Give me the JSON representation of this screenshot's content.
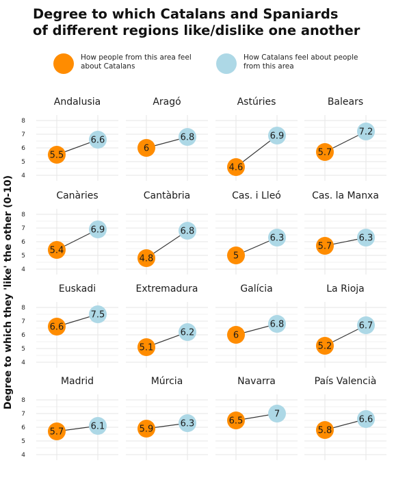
{
  "title": "Degree to which Catalans and Spaniards\nof different regions like/dislike one another",
  "legend": {
    "item1": "How people from this area feel\nabout Catalans",
    "item2": "How Catalans feel about people\nfrom this area"
  },
  "colors": {
    "orange": "#ff8c00",
    "blue": "#add8e6",
    "line": "#333333",
    "grid": "#e6e6e6"
  },
  "chart_data": {
    "type": "scatter",
    "title": "Degree to which Catalans and Spaniards of different regions like/dislike one another",
    "ylabel": "Degree to which they 'like' the other (0-10)",
    "ylim": [
      3.6,
      8.4
    ],
    "yticks": [
      4,
      5,
      6,
      7,
      8
    ],
    "series": [
      {
        "name": "How people from this area feel about Catalans",
        "color": "#ff8c00"
      },
      {
        "name": "How Catalans feel about people from this area",
        "color": "#add8e6"
      }
    ],
    "panels": [
      {
        "region": "Andalusia",
        "values": [
          5.5,
          6.6
        ],
        "labels": [
          "5.5",
          "6.6"
        ]
      },
      {
        "region": "Aragó",
        "values": [
          6,
          6.8
        ],
        "labels": [
          "6",
          "6.8"
        ]
      },
      {
        "region": "Astúries",
        "values": [
          4.6,
          6.9
        ],
        "labels": [
          "4.6",
          "6.9"
        ]
      },
      {
        "region": "Balears",
        "values": [
          5.7,
          7.2
        ],
        "labels": [
          "5.7",
          "7.2"
        ]
      },
      {
        "region": "Canàries",
        "values": [
          5.4,
          6.9
        ],
        "labels": [
          "5.4",
          "6.9"
        ]
      },
      {
        "region": "Cantàbria",
        "values": [
          4.8,
          6.8
        ],
        "labels": [
          "4.8",
          "6.8"
        ]
      },
      {
        "region": "Cas. i Lleó",
        "values": [
          5,
          6.3
        ],
        "labels": [
          "5",
          "6.3"
        ]
      },
      {
        "region": "Cas. la Manxa",
        "values": [
          5.7,
          6.3
        ],
        "labels": [
          "5.7",
          "6.3"
        ]
      },
      {
        "region": "Euskadi",
        "values": [
          6.6,
          7.5
        ],
        "labels": [
          "6.6",
          "7.5"
        ]
      },
      {
        "region": "Extremadura",
        "values": [
          5.1,
          6.2
        ],
        "labels": [
          "5.1",
          "6.2"
        ]
      },
      {
        "region": "Galícia",
        "values": [
          6,
          6.8
        ],
        "labels": [
          "6",
          "6.8"
        ]
      },
      {
        "region": "La Rioja",
        "values": [
          5.2,
          6.7
        ],
        "labels": [
          "5.2",
          "6.7"
        ]
      },
      {
        "region": "Madrid",
        "values": [
          5.7,
          6.1
        ],
        "labels": [
          "5.7",
          "6.1"
        ]
      },
      {
        "region": "Múrcia",
        "values": [
          5.9,
          6.3
        ],
        "labels": [
          "5.9",
          "6.3"
        ]
      },
      {
        "region": "Navarra",
        "values": [
          6.5,
          7
        ],
        "labels": [
          "6.5",
          "7"
        ]
      },
      {
        "region": "País Valencià",
        "values": [
          5.8,
          6.6
        ],
        "labels": [
          "5.8",
          "6.6"
        ]
      }
    ]
  }
}
